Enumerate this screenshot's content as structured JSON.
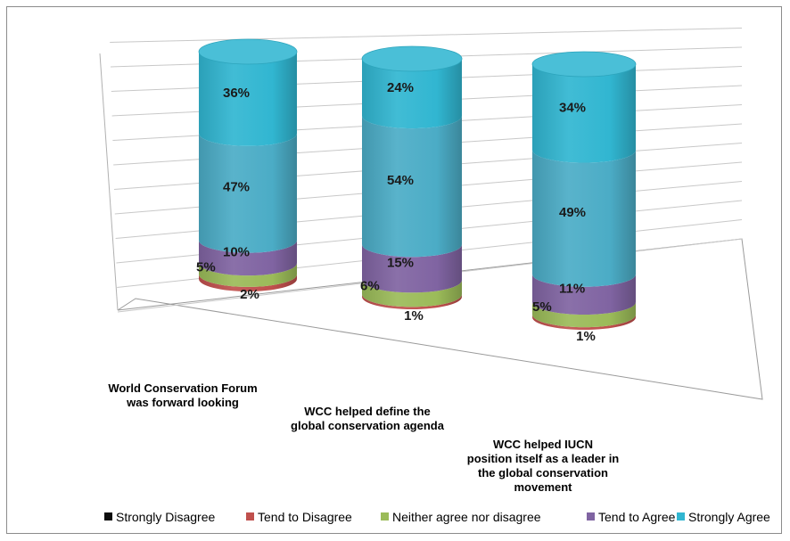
{
  "chart_data": {
    "type": "bar",
    "stacked": true,
    "style": "3d-cylinder",
    "categories": [
      {
        "lines": [
          "World Conservation Forum",
          "was forward looking"
        ]
      },
      {
        "lines": [
          "WCC helped define the",
          "global conservation agenda"
        ]
      },
      {
        "lines": [
          "WCC helped IUCN",
          "position itself as a leader in",
          "the global conservation",
          "movement"
        ]
      }
    ],
    "series": [
      {
        "name": "Strongly Disagree",
        "color": "#0d0d0d",
        "values": [
          0,
          0,
          0
        ],
        "labels": [
          "",
          "",
          ""
        ]
      },
      {
        "name": "Tend to Disagree",
        "color": "#c0504d",
        "values": [
          2,
          1,
          1
        ],
        "labels": [
          "2%",
          "1%",
          "1%"
        ]
      },
      {
        "name": "Neither agree nor disagree",
        "color": "#9bbb59",
        "values": [
          5,
          6,
          5
        ],
        "labels": [
          "5%",
          "6%",
          "5%"
        ]
      },
      {
        "name": "Tend to Agree",
        "color": "#8064a2",
        "values": [
          10,
          15,
          11
        ],
        "labels": [
          "10%",
          "15%",
          "11%"
        ]
      },
      {
        "name": "Strongly Agree",
        "color": "#4bacc6",
        "values": [
          47,
          54,
          49
        ],
        "labels": [
          "47%",
          "54%",
          "49%"
        ]
      },
      {
        "name": "",
        "color": "#31b6d1",
        "values": [
          36,
          24,
          34
        ],
        "labels": [
          "36%",
          "24%",
          "34%"
        ]
      }
    ],
    "legend": [
      "Strongly Disagree",
      "Tend to Disagree",
      "Neither agree nor disagree",
      "Tend to Agree",
      "Strongly Agree"
    ],
    "legend_position": "bottom",
    "gridlines": true,
    "ylim": [
      0,
      100
    ]
  }
}
